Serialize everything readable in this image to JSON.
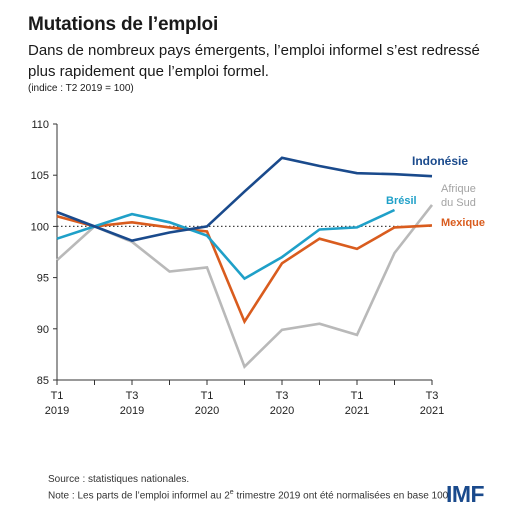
{
  "header": {
    "title": "Mutations de l’emploi",
    "subtitle": "Dans de nombreux pays émergents, l’emploi informel s’est redressé plus rapidement que l’emploi formel.",
    "unit": "(indice : T2 2019 = 100)"
  },
  "footer": {
    "source": "Source : statistiques nationales.",
    "note_prefix": "Note : Les parts de l’emploi informel au 2",
    "note_sup": "e",
    "note_suffix": " trimestre 2019 ont été normalisées en base 100.",
    "logo": "IMF"
  },
  "chart_data": {
    "type": "line",
    "x": [
      "2019-Q1",
      "2019-Q2",
      "2019-Q3",
      "2019-Q4",
      "2020-Q1",
      "2020-Q2",
      "2020-Q3",
      "2020-Q4",
      "2021-Q1",
      "2021-Q2",
      "2021-Q3"
    ],
    "x_tick_labels": [
      {
        "index": 0,
        "quarter": "T1",
        "year": "2019"
      },
      {
        "index": 2,
        "quarter": "T3",
        "year": "2019"
      },
      {
        "index": 4,
        "quarter": "T1",
        "year": "2020"
      },
      {
        "index": 6,
        "quarter": "T3",
        "year": "2020"
      },
      {
        "index": 8,
        "quarter": "T1",
        "year": "2021"
      },
      {
        "index": 10,
        "quarter": "T3",
        "year": "2021"
      }
    ],
    "ylim": [
      85,
      110
    ],
    "yticks": [
      85,
      90,
      95,
      100,
      105,
      110
    ],
    "reference_line": 100,
    "grid": false,
    "series": [
      {
        "name": "Indonésie",
        "color": "#1a4a8c",
        "values": [
          101.4,
          100.0,
          98.6,
          99.4,
          100.0,
          103.4,
          106.7,
          105.9,
          105.2,
          105.1,
          104.9
        ]
      },
      {
        "name": "Brésil",
        "color": "#1fa0c8",
        "values": [
          98.8,
          100.0,
          101.2,
          100.4,
          99.1,
          94.9,
          97.0,
          99.7,
          99.9,
          101.6,
          null
        ]
      },
      {
        "name": "Mexique",
        "color": "#d95c1e",
        "values": [
          101.0,
          100.0,
          100.4,
          99.9,
          99.5,
          90.7,
          96.4,
          98.8,
          97.8,
          99.9,
          100.1
        ]
      },
      {
        "name": "Afrique du Sud",
        "name_lines": [
          "Afrique",
          "du Sud"
        ],
        "color": "#b9b9b9",
        "values": [
          96.7,
          100.0,
          98.5,
          95.6,
          96.0,
          86.3,
          89.9,
          90.5,
          89.4,
          97.4,
          102.1
        ]
      }
    ]
  }
}
